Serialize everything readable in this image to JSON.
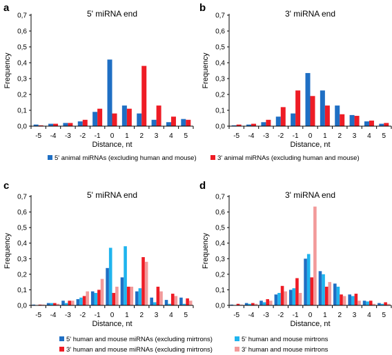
{
  "colors": {
    "five_animal": "#1f6fc4",
    "three_animal": "#ee1c25",
    "five_human": "#1f6fc4",
    "five_mirtron": "#1fb4ee",
    "three_human": "#ee1c25",
    "three_mirtron": "#f29a9a"
  },
  "legend_top": [
    {
      "label": "5' animal miRNAs (excluding human and mouse)",
      "color_key": "five_animal"
    },
    {
      "label": "3' animal miRNAs (excluding human and mouse)",
      "color_key": "three_animal"
    }
  ],
  "legend_bottom": [
    {
      "label": "5' human and mouse miRNAs (excluding mirtrons)",
      "color_key": "five_human"
    },
    {
      "label": "5' human and mouse mirtrons",
      "color_key": "five_mirtron"
    },
    {
      "label": "3' human and mouse miRNAs (excluding mirtrons)",
      "color_key": "three_human"
    },
    {
      "label": "3' human and mouse mirtrons",
      "color_key": "three_mirtron"
    }
  ],
  "chart_data": [
    {
      "panel": "a",
      "type": "bar",
      "title": "5' miRNA end",
      "xlabel": "Distance, nt",
      "ylabel": "Frequency",
      "ylim": [
        0,
        0.7
      ],
      "yticks": [
        "0,0",
        "0,1",
        "0,2",
        "0,3",
        "0,4",
        "0,5",
        "0,6",
        "0,7"
      ],
      "categories": [
        "-5",
        "-4",
        "-3",
        "-2",
        "-1",
        "0",
        "1",
        "2",
        "3",
        "4",
        "5"
      ],
      "series": [
        {
          "name": "5' animal miRNAs (excluding human and mouse)",
          "color_key": "five_animal",
          "values": [
            0.01,
            0.015,
            0.02,
            0.03,
            0.09,
            0.42,
            0.13,
            0.08,
            0.04,
            0.025,
            0.045
          ]
        },
        {
          "name": "3' animal miRNAs (excluding human and mouse)",
          "color_key": "three_animal",
          "values": [
            0.005,
            0.015,
            0.02,
            0.04,
            0.11,
            0.08,
            0.11,
            0.38,
            0.13,
            0.06,
            0.04
          ]
        }
      ]
    },
    {
      "panel": "b",
      "type": "bar",
      "title": "3' miRNA end",
      "xlabel": "Distance, nt",
      "ylabel": "Frequency",
      "ylim": [
        0,
        0.7
      ],
      "yticks": [
        "0,0",
        "0,1",
        "0,2",
        "0,3",
        "0,4",
        "0,5",
        "0,6",
        "0,7"
      ],
      "categories": [
        "-5",
        "-4",
        "-3",
        "-2",
        "-1",
        "0",
        "1",
        "2",
        "3",
        "4",
        "5"
      ],
      "series": [
        {
          "name": "5' animal miRNAs (excluding human and mouse)",
          "color_key": "five_animal",
          "values": [
            0.005,
            0.01,
            0.025,
            0.06,
            0.08,
            0.335,
            0.225,
            0.13,
            0.07,
            0.03,
            0.015
          ]
        },
        {
          "name": "3' animal miRNAs (excluding human and mouse)",
          "color_key": "three_animal",
          "values": [
            0.01,
            0.015,
            0.04,
            0.12,
            0.225,
            0.19,
            0.13,
            0.075,
            0.065,
            0.035,
            0.02
          ]
        }
      ]
    },
    {
      "panel": "c",
      "type": "bar",
      "title": "5' miRNA end",
      "xlabel": "Distance, nt",
      "ylabel": "Frequency",
      "ylim": [
        0,
        0.7
      ],
      "yticks": [
        "0,0",
        "0,1",
        "0,2",
        "0,3",
        "0,4",
        "0,5",
        "0,6",
        "0,7"
      ],
      "categories": [
        "-5",
        "-4",
        "-3",
        "-2",
        "-1",
        "0",
        "1",
        "2",
        "3",
        "4",
        "5"
      ],
      "series": [
        {
          "name": "5' human and mouse miRNAs (excluding mirtrons)",
          "color_key": "five_human",
          "values": [
            0.005,
            0.015,
            0.03,
            0.04,
            0.09,
            0.24,
            0.18,
            0.09,
            0.05,
            0.035,
            0.05
          ]
        },
        {
          "name": "5' human and mouse mirtrons",
          "color_key": "five_mirtron",
          "values": [
            0.0,
            0.015,
            0.015,
            0.05,
            0.08,
            0.37,
            0.38,
            0.11,
            0.02,
            0.01,
            0.01
          ]
        },
        {
          "name": "3' human and mouse miRNAs (excluding mirtrons)",
          "color_key": "three_human",
          "values": [
            0.005,
            0.015,
            0.03,
            0.06,
            0.1,
            0.08,
            0.12,
            0.31,
            0.12,
            0.075,
            0.045
          ]
        },
        {
          "name": "3' human and mouse mirtrons",
          "color_key": "three_mirtron",
          "values": [
            0.005,
            0.01,
            0.03,
            0.09,
            0.17,
            0.12,
            0.12,
            0.28,
            0.09,
            0.06,
            0.03
          ]
        }
      ]
    },
    {
      "panel": "d",
      "type": "bar",
      "title": "3' miRNA end",
      "xlabel": "Distance, nt",
      "ylabel": "Frequency",
      "ylim": [
        0,
        0.7
      ],
      "yticks": [
        "0,0",
        "0,1",
        "0,2",
        "0,3",
        "0,4",
        "0,5",
        "0,6",
        "0,7"
      ],
      "categories": [
        "-5",
        "-4",
        "-3",
        "-2",
        "-1",
        "0",
        "1",
        "2",
        "3",
        "4",
        "5"
      ],
      "series": [
        {
          "name": "5' human and mouse miRNAs (excluding mirtrons)",
          "color_key": "five_human",
          "values": [
            0.005,
            0.015,
            0.03,
            0.07,
            0.1,
            0.3,
            0.22,
            0.14,
            0.07,
            0.03,
            0.015
          ]
        },
        {
          "name": "5' human and mouse mirtrons",
          "color_key": "five_mirtron",
          "values": [
            0.0,
            0.01,
            0.02,
            0.08,
            0.11,
            0.33,
            0.2,
            0.12,
            0.06,
            0.025,
            0.01
          ]
        },
        {
          "name": "3' human and mouse miRNAs (excluding mirtrons)",
          "color_key": "three_human",
          "values": [
            0.01,
            0.015,
            0.04,
            0.125,
            0.175,
            0.18,
            0.12,
            0.07,
            0.075,
            0.03,
            0.02
          ]
        },
        {
          "name": "3' human and mouse mirtrons",
          "color_key": "three_mirtron",
          "values": [
            0.005,
            0.01,
            0.03,
            0.09,
            0.08,
            0.635,
            0.15,
            0.06,
            0.03,
            0.01,
            0.01
          ]
        }
      ]
    }
  ]
}
